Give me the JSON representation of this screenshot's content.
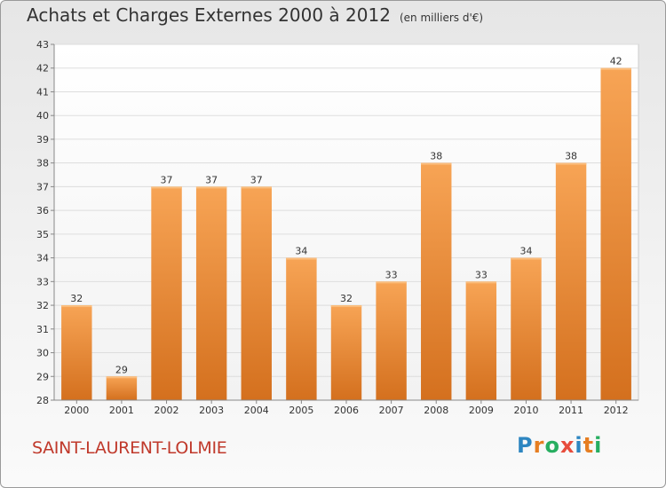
{
  "title": "Achats et Charges Externes 2000 à 2012",
  "subtitle": "(en milliers d'€)",
  "commune": "SAINT-LAURENT-LOLMIE",
  "logo_letters": [
    "P",
    "r",
    "o",
    "x",
    "i",
    "t",
    "i"
  ],
  "logo_colors": [
    "#2e86c1",
    "#e67e22",
    "#27ae60",
    "#e74c3c",
    "#2e86c1",
    "#e67e22",
    "#27ae60"
  ],
  "colors": {
    "bar": "#f0923a",
    "bar_dark": "#d46f1c",
    "accent": "#c0392b"
  },
  "chart_data": {
    "type": "bar",
    "categories": [
      "2000",
      "2001",
      "2002",
      "2003",
      "2004",
      "2005",
      "2006",
      "2007",
      "2008",
      "2009",
      "2010",
      "2011",
      "2012"
    ],
    "values": [
      32,
      29,
      37,
      37,
      37,
      34,
      32,
      33,
      38,
      33,
      34,
      38,
      42
    ],
    "title": "Achats et Charges Externes 2000 à 2012",
    "xlabel": "",
    "ylabel": "",
    "ylim": [
      28,
      43
    ],
    "yticks": [
      28,
      29,
      30,
      31,
      32,
      33,
      34,
      35,
      36,
      37,
      38,
      39,
      40,
      41,
      42,
      43
    ],
    "grid": true,
    "data_labels": true
  }
}
